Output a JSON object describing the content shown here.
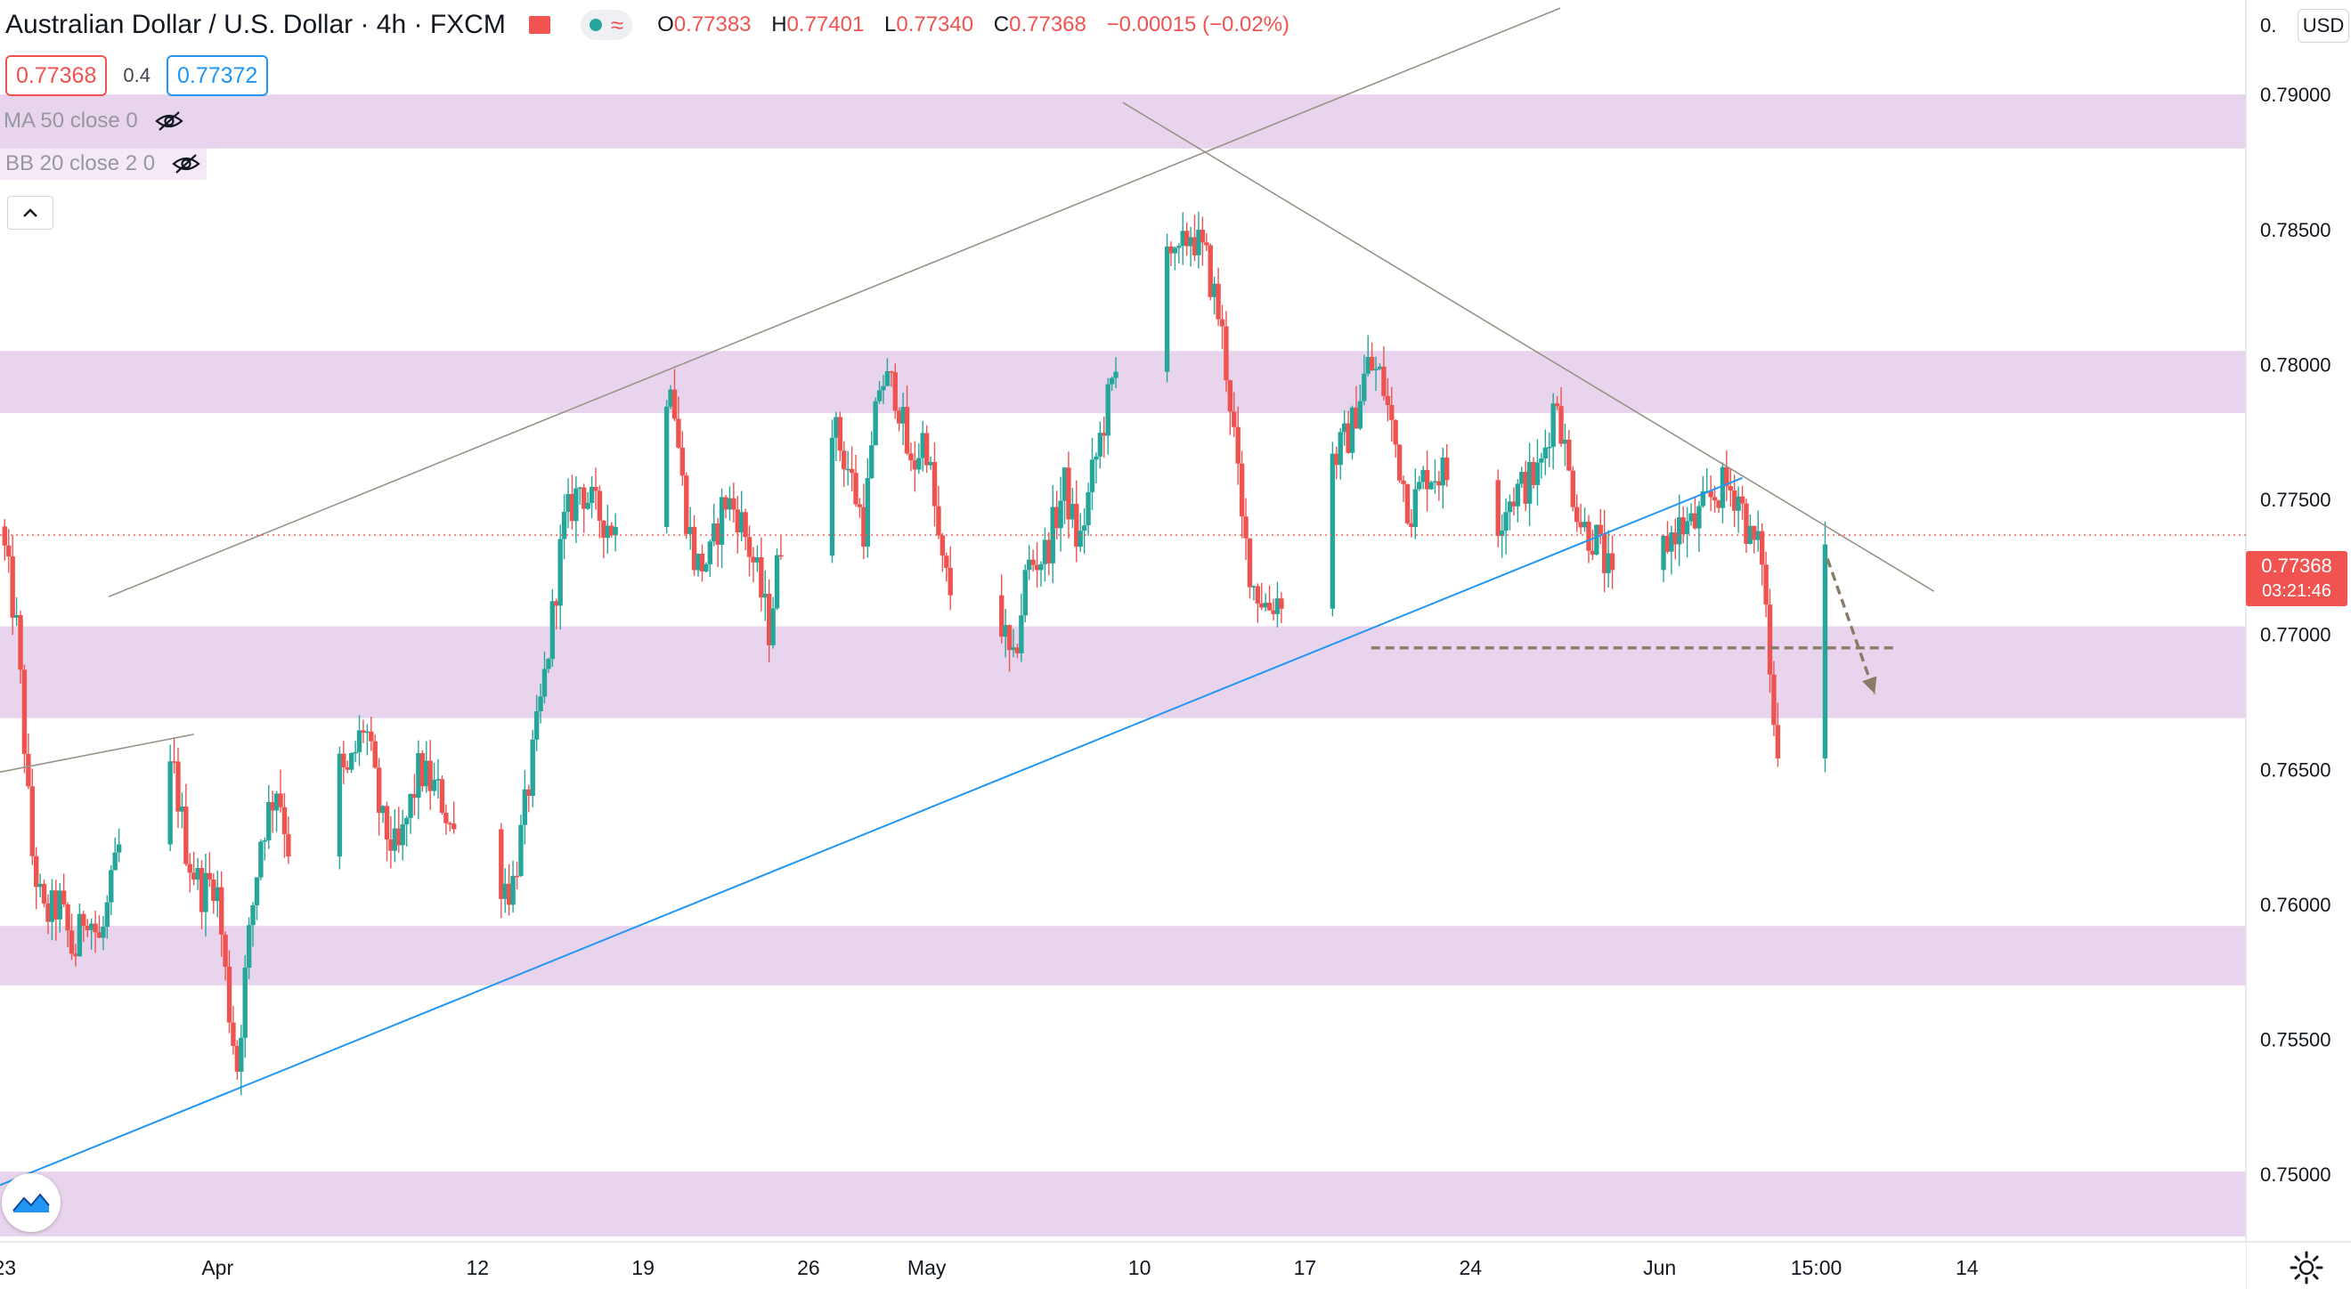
{
  "header": {
    "symbol_title": "Australian Dollar / U.S. Dollar · 4h · FXCM",
    "ohlc": {
      "o_label": "O",
      "o": "0.77383",
      "h_label": "H",
      "h": "0.77401",
      "l_label": "L",
      "l": "0.77340",
      "c_label": "C",
      "c": "0.77368",
      "change": "−0.00015 (−0.02%)"
    },
    "sell_price": "0.77368",
    "spread": "0.4",
    "buy_price": "0.77372"
  },
  "indicators": [
    {
      "label": "MA 50 close 0"
    },
    {
      "label": "BB 20 close 2 0"
    }
  ],
  "currency": "USD",
  "current_price_tag": {
    "price": "0.77368",
    "countdown": "03:21:46"
  },
  "colors": {
    "up": "#26a69a",
    "down": "#ef5350",
    "zone": "#e1c4e6",
    "trend": "#2196f3",
    "annotation": "#8d7a66"
  },
  "chart_data": {
    "type": "candlestick",
    "timeframe": "4h",
    "ylim": [
      0.7475,
      0.7935
    ],
    "y_ticks": [
      0.75,
      0.755,
      0.76,
      0.765,
      0.77,
      0.775,
      0.78,
      0.785,
      0.79
    ],
    "y_tick_labels": [
      "0.75000",
      "0.75500",
      "0.76000",
      "0.76500",
      "0.77000",
      "0.77500",
      "0.78000",
      "0.78500",
      "0.79000"
    ],
    "top_axis_label": "0.",
    "x_range_days": [
      -0.2,
      94.8
    ],
    "x_ticks": [
      {
        "day": 0,
        "label": "23"
      },
      {
        "day": 9,
        "label": "Apr"
      },
      {
        "day": 20,
        "label": "12"
      },
      {
        "day": 27,
        "label": "19"
      },
      {
        "day": 34,
        "label": "26"
      },
      {
        "day": 39,
        "label": "May"
      },
      {
        "day": 48,
        "label": "10"
      },
      {
        "day": 55,
        "label": "17"
      },
      {
        "day": 62,
        "label": "24"
      },
      {
        "day": 70,
        "label": "Jun"
      },
      {
        "day": 76.625,
        "label": "15:00"
      },
      {
        "day": 83,
        "label": "14"
      }
    ],
    "zones": [
      [
        0.788,
        0.79
      ],
      [
        0.7782,
        0.7805
      ],
      [
        0.7669,
        0.7703
      ],
      [
        0.757,
        0.7592
      ],
      [
        0.7477,
        0.7501
      ]
    ],
    "trendlines": [
      {
        "style": "thin-gray",
        "points": [
          [
            4.4,
            0.7714
          ],
          [
            65.8,
            0.7932
          ]
        ]
      },
      {
        "style": "thin-gray",
        "points": [
          [
            47.3,
            0.7897
          ],
          [
            81.6,
            0.7716
          ]
        ]
      },
      {
        "style": "thin-gray",
        "points": [
          [
            -0.2,
            0.7649
          ],
          [
            8,
            0.7663
          ]
        ]
      },
      {
        "style": "blue",
        "points": [
          [
            -0.2,
            0.7496
          ],
          [
            73.5,
            0.7758
          ]
        ]
      }
    ],
    "horizontal_lines": [
      {
        "style": "dashed-brown",
        "price": 0.7695,
        "from_day": 57.8,
        "to_day": 80
      }
    ],
    "arrows": [
      {
        "style": "dashed-brown",
        "from": [
          77.1,
          0.7728
        ],
        "to": [
          79.1,
          0.7678
        ]
      }
    ],
    "last_price_line": 0.77368,
    "waypoints": [
      [
        0,
        0.774
      ],
      [
        0.7,
        0.77
      ],
      [
        1.3,
        0.762
      ],
      [
        1.8,
        0.7595
      ],
      [
        2.5,
        0.76
      ],
      [
        3.1,
        0.758
      ],
      [
        3.6,
        0.76
      ],
      [
        4.2,
        0.7585
      ],
      [
        5,
        0.762
      ],
      [
        5.8,
        0.7645
      ],
      [
        6.6,
        0.764
      ],
      [
        7.3,
        0.765
      ],
      [
        7.9,
        0.7618
      ],
      [
        8.5,
        0.7605
      ],
      [
        9.1,
        0.761
      ],
      [
        9.6,
        0.7565
      ],
      [
        10,
        0.754
      ],
      [
        10.4,
        0.758
      ],
      [
        11,
        0.7625
      ],
      [
        11.7,
        0.7645
      ],
      [
        12.4,
        0.761
      ],
      [
        13.2,
        0.7622
      ],
      [
        13.9,
        0.766
      ],
      [
        14.6,
        0.7645
      ],
      [
        15.4,
        0.7668
      ],
      [
        16.1,
        0.763
      ],
      [
        16.8,
        0.7618
      ],
      [
        17.7,
        0.765
      ],
      [
        18.6,
        0.764
      ],
      [
        19.4,
        0.762
      ],
      [
        20.3,
        0.7625
      ],
      [
        21.1,
        0.761
      ],
      [
        21.6,
        0.7605
      ],
      [
        22,
        0.7625
      ],
      [
        22.6,
        0.766
      ],
      [
        23.1,
        0.769
      ],
      [
        23.8,
        0.774
      ],
      [
        24.5,
        0.7755
      ],
      [
        25.2,
        0.7745
      ],
      [
        25.9,
        0.774
      ],
      [
        26.5,
        0.773
      ],
      [
        27.1,
        0.778
      ],
      [
        27.7,
        0.776
      ],
      [
        28.3,
        0.78
      ],
      [
        28.9,
        0.775
      ],
      [
        29.4,
        0.7725
      ],
      [
        30,
        0.7728
      ],
      [
        30.6,
        0.775
      ],
      [
        31.2,
        0.7745
      ],
      [
        31.9,
        0.7725
      ],
      [
        32.5,
        0.7702
      ],
      [
        33.2,
        0.7748
      ],
      [
        33.9,
        0.7775
      ],
      [
        34.6,
        0.7805
      ],
      [
        35.3,
        0.7775
      ],
      [
        35.9,
        0.776
      ],
      [
        36.5,
        0.774
      ],
      [
        37.2,
        0.7795
      ],
      [
        37.9,
        0.779
      ],
      [
        38.5,
        0.776
      ],
      [
        39.1,
        0.7775
      ],
      [
        39.8,
        0.7725
      ],
      [
        40.4,
        0.771
      ],
      [
        41,
        0.7745
      ],
      [
        41.7,
        0.7735
      ],
      [
        42.3,
        0.7705
      ],
      [
        42.8,
        0.7685
      ],
      [
        43.4,
        0.7725
      ],
      [
        44.2,
        0.773
      ],
      [
        45,
        0.7755
      ],
      [
        45.6,
        0.7732
      ],
      [
        46.2,
        0.776
      ],
      [
        46.8,
        0.7785
      ],
      [
        47.3,
        0.78
      ],
      [
        47.7,
        0.7845
      ],
      [
        48.2,
        0.7865
      ],
      [
        48.6,
        0.7885
      ],
      [
        49.1,
        0.786
      ],
      [
        49.7,
        0.7835
      ],
      [
        50.3,
        0.785
      ],
      [
        51,
        0.7838
      ],
      [
        51.6,
        0.7815
      ],
      [
        52.1,
        0.778
      ],
      [
        52.5,
        0.774
      ],
      [
        53,
        0.7718
      ],
      [
        53.6,
        0.771
      ],
      [
        54.2,
        0.7715
      ],
      [
        54.9,
        0.776
      ],
      [
        55.6,
        0.777
      ],
      [
        56.4,
        0.7765
      ],
      [
        57.1,
        0.7775
      ],
      [
        57.8,
        0.78
      ],
      [
        58.4,
        0.7795
      ],
      [
        59,
        0.777
      ],
      [
        59.6,
        0.7745
      ],
      [
        60.3,
        0.776
      ],
      [
        61,
        0.776
      ],
      [
        61.7,
        0.7755
      ],
      [
        62.3,
        0.772
      ],
      [
        63,
        0.7735
      ],
      [
        63.7,
        0.775
      ],
      [
        64.4,
        0.7755
      ],
      [
        65.1,
        0.776
      ],
      [
        65.8,
        0.779
      ],
      [
        66.3,
        0.776
      ],
      [
        66.9,
        0.774
      ],
      [
        67.5,
        0.7735
      ],
      [
        68.1,
        0.772
      ],
      [
        68.6,
        0.77
      ],
      [
        69.1,
        0.7685
      ],
      [
        69.6,
        0.77
      ],
      [
        70.2,
        0.773
      ],
      [
        70.9,
        0.774
      ],
      [
        71.6,
        0.774
      ],
      [
        72.3,
        0.775
      ],
      [
        72.9,
        0.7755
      ],
      [
        73.5,
        0.7752
      ],
      [
        74,
        0.7735
      ],
      [
        74.5,
        0.773
      ],
      [
        75,
        0.7665
      ],
      [
        75.4,
        0.7655
      ],
      [
        75.9,
        0.766
      ],
      [
        76.3,
        0.77
      ],
      [
        76.7,
        0.774
      ],
      [
        77.1,
        0.7738
      ]
    ]
  }
}
